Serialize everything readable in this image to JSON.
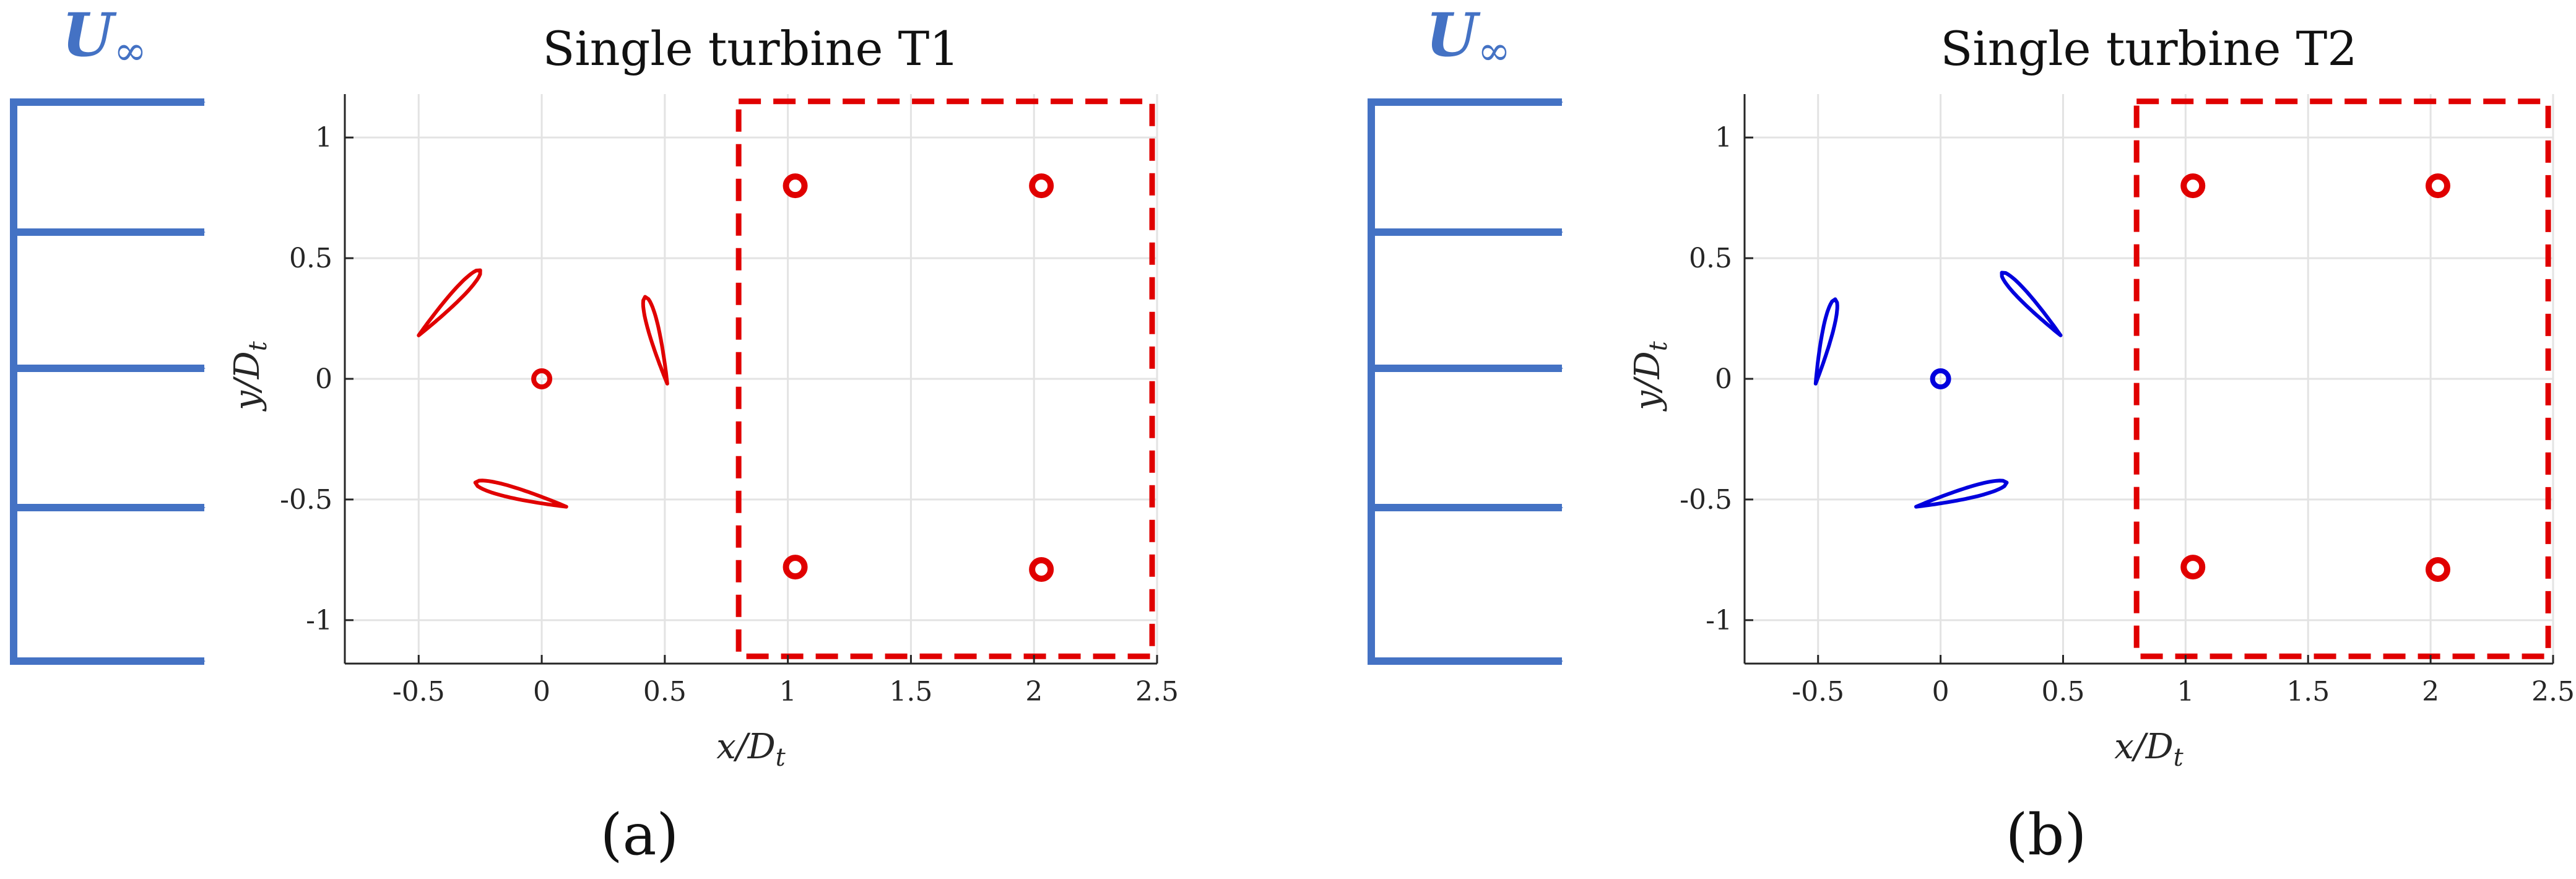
{
  "figure": {
    "inflow_label": "U",
    "inflow_subscript": "∞",
    "inflow_color": "#4472c4",
    "downstream_box_color": "#e00000",
    "panels": [
      {
        "title": "Single turbine T1",
        "panel_label": "(a)",
        "turbine_color": "#e00000",
        "xlabel_main": "x",
        "xlabel_den": "/D",
        "xlabel_sub": "t",
        "ylabel_main": "y",
        "ylabel_den": "/D",
        "ylabel_sub": "t"
      },
      {
        "title": "Single turbine T2",
        "panel_label": "(b)",
        "turbine_color": "#0000dd",
        "xlabel_main": "x",
        "xlabel_den": "/D",
        "xlabel_sub": "t",
        "ylabel_main": "y",
        "ylabel_den": "/D",
        "ylabel_sub": "t"
      }
    ]
  },
  "chart_data": [
    {
      "type": "scatter",
      "title": "Single turbine T1",
      "xlim": [
        -0.8,
        2.5
      ],
      "ylim": [
        -1.18,
        1.18
      ],
      "x_ticks": [
        -0.5,
        0,
        0.5,
        1,
        1.5,
        2,
        2.5
      ],
      "x_tick_labels": [
        "-0.5",
        "0",
        "0.5",
        "1",
        "1.5",
        "2",
        "2.5"
      ],
      "y_ticks": [
        -1,
        -0.5,
        0,
        0.5,
        1
      ],
      "y_tick_labels": [
        "-1",
        "-0.5",
        "0",
        "0.5",
        "1"
      ],
      "grid": true,
      "turbine": {
        "center": [
          0,
          0
        ],
        "blades": [
          {
            "x1": -0.25,
            "y1": 0.45,
            "x2": -0.5,
            "y2": 0.18
          },
          {
            "x1": 0.42,
            "y1": 0.34,
            "x2": 0.51,
            "y2": -0.02
          },
          {
            "x1": -0.27,
            "y1": -0.43,
            "x2": 0.1,
            "y2": -0.53
          }
        ]
      },
      "probes": [
        [
          1.03,
          0.8
        ],
        [
          2.03,
          0.8
        ],
        [
          1.03,
          -0.78
        ],
        [
          2.03,
          -0.79
        ]
      ],
      "downstream_box": {
        "x": [
          0.8,
          2.48
        ],
        "y": [
          -1.15,
          1.15
        ]
      }
    },
    {
      "type": "scatter",
      "title": "Single turbine T2",
      "xlim": [
        -0.8,
        2.5
      ],
      "ylim": [
        -1.18,
        1.18
      ],
      "x_ticks": [
        -0.5,
        0,
        0.5,
        1,
        1.5,
        2,
        2.5
      ],
      "x_tick_labels": [
        "-0.5",
        "0",
        "0.5",
        "1",
        "1.5",
        "2",
        "2.5"
      ],
      "y_ticks": [
        -1,
        -0.5,
        0,
        0.5,
        1
      ],
      "y_tick_labels": [
        "-1",
        "-0.5",
        "0",
        "0.5",
        "1"
      ],
      "grid": true,
      "turbine": {
        "center": [
          0,
          0
        ],
        "blades": [
          {
            "x1": -0.43,
            "y1": 0.33,
            "x2": -0.51,
            "y2": -0.02
          },
          {
            "x1": 0.25,
            "y1": 0.44,
            "x2": 0.49,
            "y2": 0.18
          },
          {
            "x1": 0.27,
            "y1": -0.43,
            "x2": -0.1,
            "y2": -0.53
          }
        ]
      },
      "probes": [
        [
          1.03,
          0.8
        ],
        [
          2.03,
          0.8
        ],
        [
          1.03,
          -0.78
        ],
        [
          2.03,
          -0.79
        ]
      ],
      "downstream_box": {
        "x": [
          0.8,
          2.48
        ],
        "y": [
          -1.15,
          1.15
        ]
      }
    }
  ]
}
